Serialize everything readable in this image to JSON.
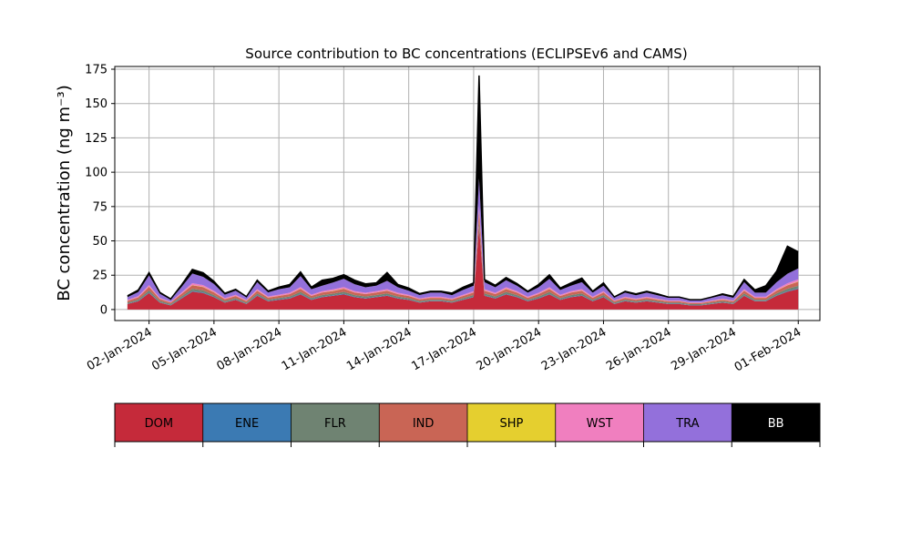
{
  "chart_data": {
    "type": "area",
    "title": "Source contribution to BC concentrations (ECLIPSEv6 and CAMS)",
    "ylabel": "BC concentration (ng m⁻³)",
    "xlabel": "",
    "ylim": [
      -8,
      177
    ],
    "xlim": [
      "2023-12-31T10:00",
      "2024-02-02T00:00"
    ],
    "yticks": [
      0,
      25,
      50,
      75,
      100,
      125,
      150,
      175
    ],
    "xtick_labels": [
      "02-Jan-2024",
      "05-Jan-2024",
      "08-Jan-2024",
      "11-Jan-2024",
      "14-Jan-2024",
      "17-Jan-2024",
      "20-Jan-2024",
      "23-Jan-2024",
      "26-Jan-2024",
      "29-Jan-2024",
      "01-Feb-2024"
    ],
    "xtick_dates": [
      "2024-01-02",
      "2024-01-05",
      "2024-01-08",
      "2024-01-11",
      "2024-01-14",
      "2024-01-17",
      "2024-01-20",
      "2024-01-23",
      "2024-01-26",
      "2024-01-29",
      "2024-02-01"
    ],
    "grid": true,
    "legend": {
      "placement": "below",
      "entries": [
        {
          "label": "DOM",
          "color": "#c52a3a"
        },
        {
          "label": "ENE",
          "color": "#3b7ab3"
        },
        {
          "label": "FLR",
          "color": "#6f8372"
        },
        {
          "label": "IND",
          "color": "#c96555"
        },
        {
          "label": "SHP",
          "color": "#e5cf2f"
        },
        {
          "label": "WST",
          "color": "#f07fbf"
        },
        {
          "label": "TRA",
          "color": "#9370db"
        },
        {
          "label": "BB",
          "color": "#000000"
        }
      ]
    },
    "x": [
      "2024-01-01T00:00",
      "2024-01-01T12:00",
      "2024-01-02T00:00",
      "2024-01-02T12:00",
      "2024-01-03T00:00",
      "2024-01-03T12:00",
      "2024-01-04T00:00",
      "2024-01-04T12:00",
      "2024-01-05T00:00",
      "2024-01-05T12:00",
      "2024-01-06T00:00",
      "2024-01-06T12:00",
      "2024-01-07T00:00",
      "2024-01-07T12:00",
      "2024-01-08T00:00",
      "2024-01-08T12:00",
      "2024-01-09T00:00",
      "2024-01-09T12:00",
      "2024-01-10T00:00",
      "2024-01-10T12:00",
      "2024-01-11T00:00",
      "2024-01-11T12:00",
      "2024-01-12T00:00",
      "2024-01-12T12:00",
      "2024-01-13T00:00",
      "2024-01-13T12:00",
      "2024-01-14T00:00",
      "2024-01-14T12:00",
      "2024-01-15T00:00",
      "2024-01-15T12:00",
      "2024-01-16T00:00",
      "2024-01-16T12:00",
      "2024-01-17T00:00",
      "2024-01-17T06:00",
      "2024-01-17T12:00",
      "2024-01-18T00:00",
      "2024-01-18T12:00",
      "2024-01-19T00:00",
      "2024-01-19T12:00",
      "2024-01-20T00:00",
      "2024-01-20T12:00",
      "2024-01-21T00:00",
      "2024-01-21T12:00",
      "2024-01-22T00:00",
      "2024-01-22T12:00",
      "2024-01-23T00:00",
      "2024-01-23T12:00",
      "2024-01-24T00:00",
      "2024-01-24T12:00",
      "2024-01-25T00:00",
      "2024-01-25T12:00",
      "2024-01-26T00:00",
      "2024-01-26T12:00",
      "2024-01-27T00:00",
      "2024-01-27T12:00",
      "2024-01-28T00:00",
      "2024-01-28T12:00",
      "2024-01-29T00:00",
      "2024-01-29T12:00",
      "2024-01-30T00:00",
      "2024-01-30T12:00",
      "2024-01-31T00:00",
      "2024-01-31T12:00",
      "2024-02-01T00:00"
    ],
    "series": [
      {
        "name": "DOM",
        "values": [
          4,
          6,
          12,
          5,
          3,
          8,
          13,
          12,
          9,
          5,
          7,
          4,
          10,
          6,
          7,
          8,
          11,
          7,
          9,
          10,
          11,
          9,
          8,
          9,
          10,
          8,
          7,
          5,
          6,
          6,
          5,
          7,
          9,
          60,
          10,
          8,
          11,
          9,
          6,
          8,
          11,
          7,
          9,
          10,
          6,
          9,
          4,
          6,
          5,
          6,
          5,
          4,
          4,
          3,
          3,
          4,
          5,
          4,
          10,
          6,
          6,
          10,
          13,
          15
        ]
      },
      {
        "name": "ENE",
        "values": [
          0.3,
          0.3,
          0.5,
          0.3,
          0.3,
          0.4,
          0.5,
          0.5,
          0.4,
          0.3,
          0.3,
          0.3,
          0.4,
          0.3,
          0.4,
          0.4,
          0.5,
          0.4,
          0.4,
          0.4,
          0.5,
          0.4,
          0.4,
          0.4,
          0.4,
          0.4,
          0.3,
          0.3,
          0.3,
          0.3,
          0.3,
          0.3,
          0.4,
          1.0,
          0.4,
          0.4,
          0.4,
          0.4,
          0.3,
          0.4,
          0.4,
          0.3,
          0.4,
          0.4,
          0.3,
          0.4,
          0.3,
          0.3,
          0.3,
          0.3,
          0.3,
          0.3,
          0.3,
          0.3,
          0.3,
          0.3,
          0.3,
          0.3,
          0.4,
          0.3,
          0.3,
          0.4,
          0.5,
          0.5
        ]
      },
      {
        "name": "FLR",
        "values": [
          0.8,
          1.0,
          1.5,
          1.0,
          0.8,
          1.2,
          1.6,
          1.5,
          1.2,
          0.9,
          1.0,
          0.8,
          1.3,
          1.0,
          1.0,
          1.1,
          1.4,
          1.0,
          1.2,
          1.2,
          1.4,
          1.2,
          1.1,
          1.2,
          1.3,
          1.1,
          1.0,
          0.9,
          0.9,
          0.9,
          0.8,
          1.0,
          1.2,
          3.0,
          1.3,
          1.1,
          1.4,
          1.2,
          0.9,
          1.1,
          1.4,
          1.0,
          1.2,
          1.3,
          0.9,
          1.2,
          0.8,
          0.9,
          0.8,
          0.9,
          0.8,
          0.7,
          0.7,
          0.6,
          0.6,
          0.7,
          0.8,
          0.7,
          1.3,
          0.9,
          0.9,
          1.3,
          1.6,
          1.8
        ]
      },
      {
        "name": "IND",
        "values": [
          1.2,
          1.5,
          2.5,
          1.4,
          1.0,
          1.8,
          2.6,
          2.4,
          1.9,
          1.3,
          1.5,
          1.1,
          2.0,
          1.4,
          1.5,
          1.7,
          2.2,
          1.5,
          1.8,
          1.9,
          2.2,
          1.8,
          1.7,
          1.8,
          2.0,
          1.7,
          1.5,
          1.2,
          1.3,
          1.3,
          1.2,
          1.5,
          1.8,
          8.0,
          2.0,
          1.7,
          2.2,
          1.8,
          1.3,
          1.7,
          2.2,
          1.5,
          1.8,
          2.0,
          1.3,
          1.8,
          1.0,
          1.3,
          1.1,
          1.3,
          1.1,
          1.0,
          1.0,
          0.8,
          0.8,
          1.0,
          1.1,
          1.0,
          2.0,
          1.3,
          1.3,
          2.0,
          2.5,
          3.0
        ]
      },
      {
        "name": "SHP",
        "values": [
          0.1,
          0.1,
          0.2,
          0.1,
          0.1,
          0.1,
          0.2,
          0.2,
          0.1,
          0.1,
          0.1,
          0.1,
          0.2,
          0.1,
          0.1,
          0.1,
          0.2,
          0.1,
          0.1,
          0.2,
          0.2,
          0.1,
          0.1,
          0.1,
          0.2,
          0.1,
          0.1,
          0.1,
          0.1,
          0.1,
          0.1,
          0.1,
          0.1,
          0.4,
          0.2,
          0.1,
          0.2,
          0.1,
          0.1,
          0.1,
          0.2,
          0.1,
          0.1,
          0.2,
          0.1,
          0.1,
          0.1,
          0.1,
          0.1,
          0.1,
          0.1,
          0.1,
          0.1,
          0.1,
          0.1,
          0.1,
          0.1,
          0.1,
          0.2,
          0.1,
          0.1,
          0.2,
          0.2,
          0.2
        ]
      },
      {
        "name": "WST",
        "values": [
          0.6,
          0.8,
          1.2,
          0.7,
          0.5,
          0.9,
          1.3,
          1.2,
          1.0,
          0.7,
          0.8,
          0.6,
          1.0,
          0.7,
          0.8,
          0.9,
          1.1,
          0.8,
          0.9,
          1.0,
          1.1,
          0.9,
          0.9,
          0.9,
          1.0,
          0.9,
          0.8,
          0.6,
          0.7,
          0.7,
          0.6,
          0.8,
          0.9,
          3.0,
          1.0,
          0.9,
          1.1,
          0.9,
          0.7,
          0.9,
          1.1,
          0.8,
          0.9,
          1.0,
          0.7,
          0.9,
          0.5,
          0.7,
          0.6,
          0.7,
          0.6,
          0.5,
          0.5,
          0.4,
          0.4,
          0.5,
          0.6,
          0.5,
          1.0,
          0.7,
          0.7,
          1.0,
          1.3,
          1.5
        ]
      },
      {
        "name": "TRA",
        "values": [
          2,
          3,
          7,
          3,
          1.5,
          4,
          7,
          6,
          5,
          2.5,
          3,
          2,
          5,
          3,
          4,
          4,
          8,
          4,
          4,
          5,
          6,
          5,
          4,
          4,
          6,
          4,
          3,
          2.5,
          3,
          3,
          2.5,
          3.5,
          4,
          20,
          5,
          4,
          5,
          4,
          3,
          4,
          6,
          3.5,
          4,
          5,
          3,
          4,
          2,
          3,
          2.5,
          3,
          2.5,
          2,
          2,
          1.5,
          1.5,
          2,
          2.5,
          2,
          5,
          3,
          3,
          5,
          7,
          8
        ]
      },
      {
        "name": "BB",
        "values": [
          1,
          1.5,
          2,
          1,
          0.5,
          1.5,
          3,
          3,
          2,
          1,
          1,
          0.5,
          1.5,
          1,
          1.5,
          2,
          3,
          1.5,
          4,
          3,
          3,
          3,
          2.5,
          2,
          6,
          2,
          2,
          1,
          1,
          1,
          1.5,
          2,
          2,
          75,
          2,
          1.5,
          2,
          1.5,
          1,
          2,
          3,
          1.5,
          2,
          3,
          1,
          2,
          0.5,
          1,
          1,
          1,
          1,
          0.5,
          0.5,
          0.5,
          0.5,
          0.5,
          1,
          1,
          2,
          2,
          5,
          8,
          20,
          12
        ]
      }
    ]
  }
}
